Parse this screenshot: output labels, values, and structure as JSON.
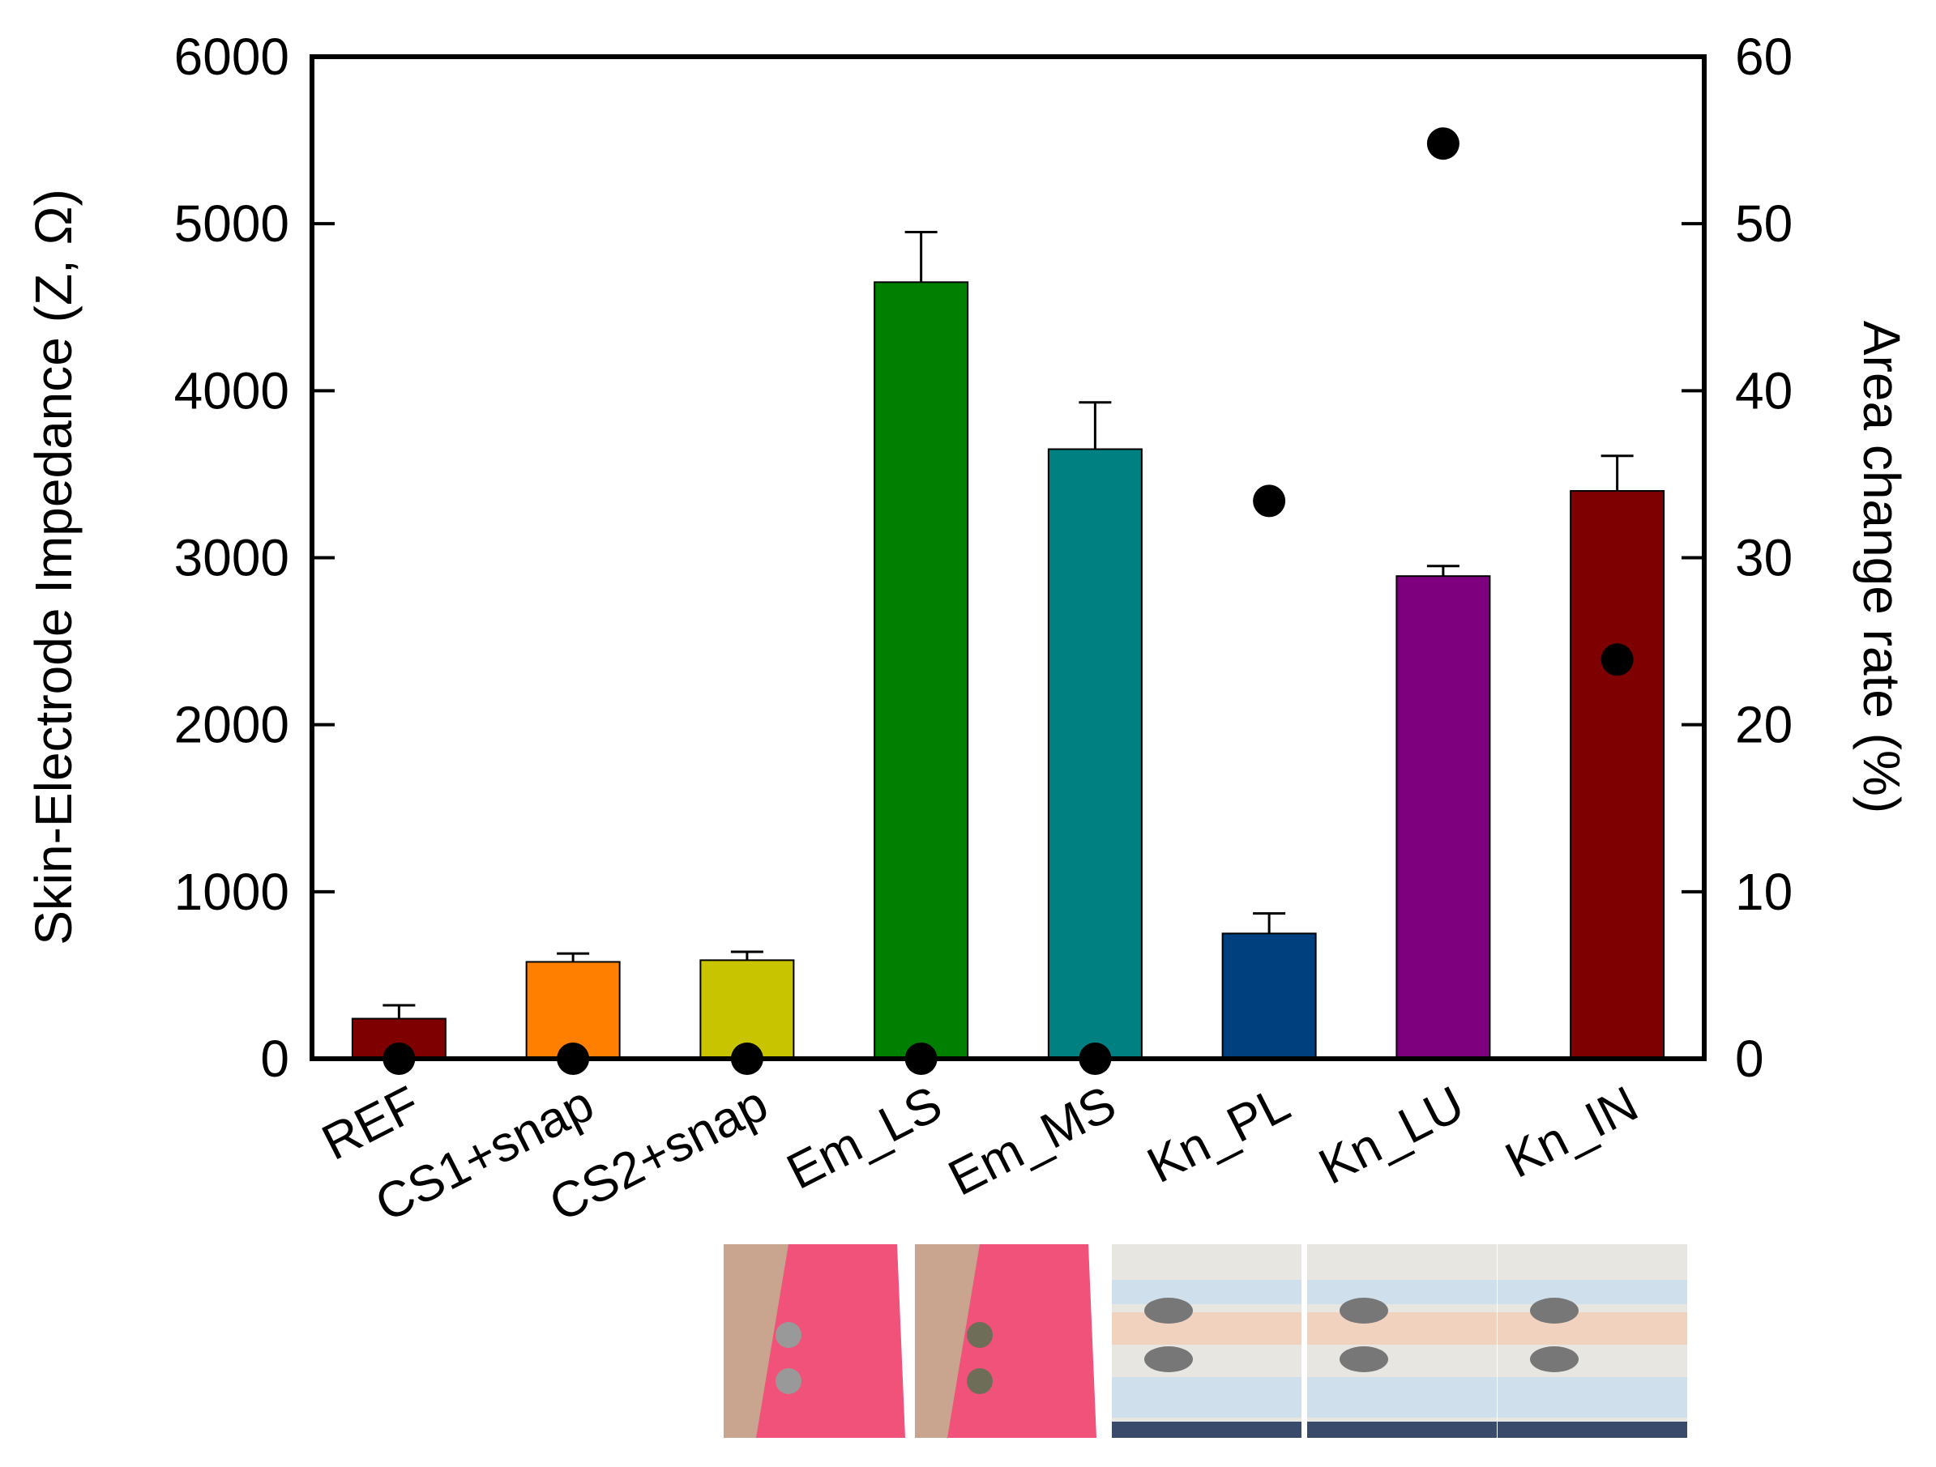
{
  "chart_data": {
    "type": "bar",
    "title": "",
    "categories": [
      "REF",
      "CS1+snap",
      "CS2+snap",
      "Em_LS",
      "Em_MS",
      "Kn_PL",
      "Kn_LU",
      "Kn_IN"
    ],
    "bar_colors": [
      "#7f0000",
      "#ff7f00",
      "#c8c400",
      "#007f00",
      "#008080",
      "#00407f",
      "#7f007f",
      "#7f0000"
    ],
    "series": [
      {
        "name": "Skin-Electrode Impedance",
        "axis": "left",
        "kind": "bar",
        "values": [
          240,
          580,
          590,
          4650,
          3650,
          750,
          2890,
          3400
        ],
        "errors": [
          80,
          50,
          50,
          300,
          280,
          120,
          60,
          210
        ]
      },
      {
        "name": "Area change rate",
        "axis": "right",
        "kind": "scatter",
        "values": [
          0,
          0,
          0,
          0,
          0,
          33.4,
          54.8,
          23.9
        ]
      }
    ],
    "ylabel": "Skin-Electrode Impedance (Z, Ω)",
    "y2label": "Area change rate (%)",
    "ylim": [
      0,
      6000
    ],
    "y2lim": [
      0,
      60
    ],
    "yticks": [
      "0",
      "1000",
      "2000",
      "3000",
      "4000",
      "5000",
      "6000"
    ],
    "y2ticks": [
      "0",
      "10",
      "20",
      "30",
      "40",
      "50",
      "60"
    ],
    "grid": false
  },
  "photos": [
    {
      "caption_for": "Em_LS",
      "fabric": "pink",
      "icon": "fabric-photo-icon"
    },
    {
      "caption_for": "Em_MS",
      "fabric": "pink",
      "icon": "fabric-photo-icon"
    },
    {
      "caption_for": "Kn_PL",
      "fabric": "white-band",
      "icon": "fabric-photo-icon"
    },
    {
      "caption_for": "Kn_LU",
      "fabric": "white-band",
      "icon": "fabric-photo-icon"
    },
    {
      "caption_for": "Kn_IN",
      "fabric": "white-band",
      "icon": "fabric-photo-icon"
    }
  ]
}
